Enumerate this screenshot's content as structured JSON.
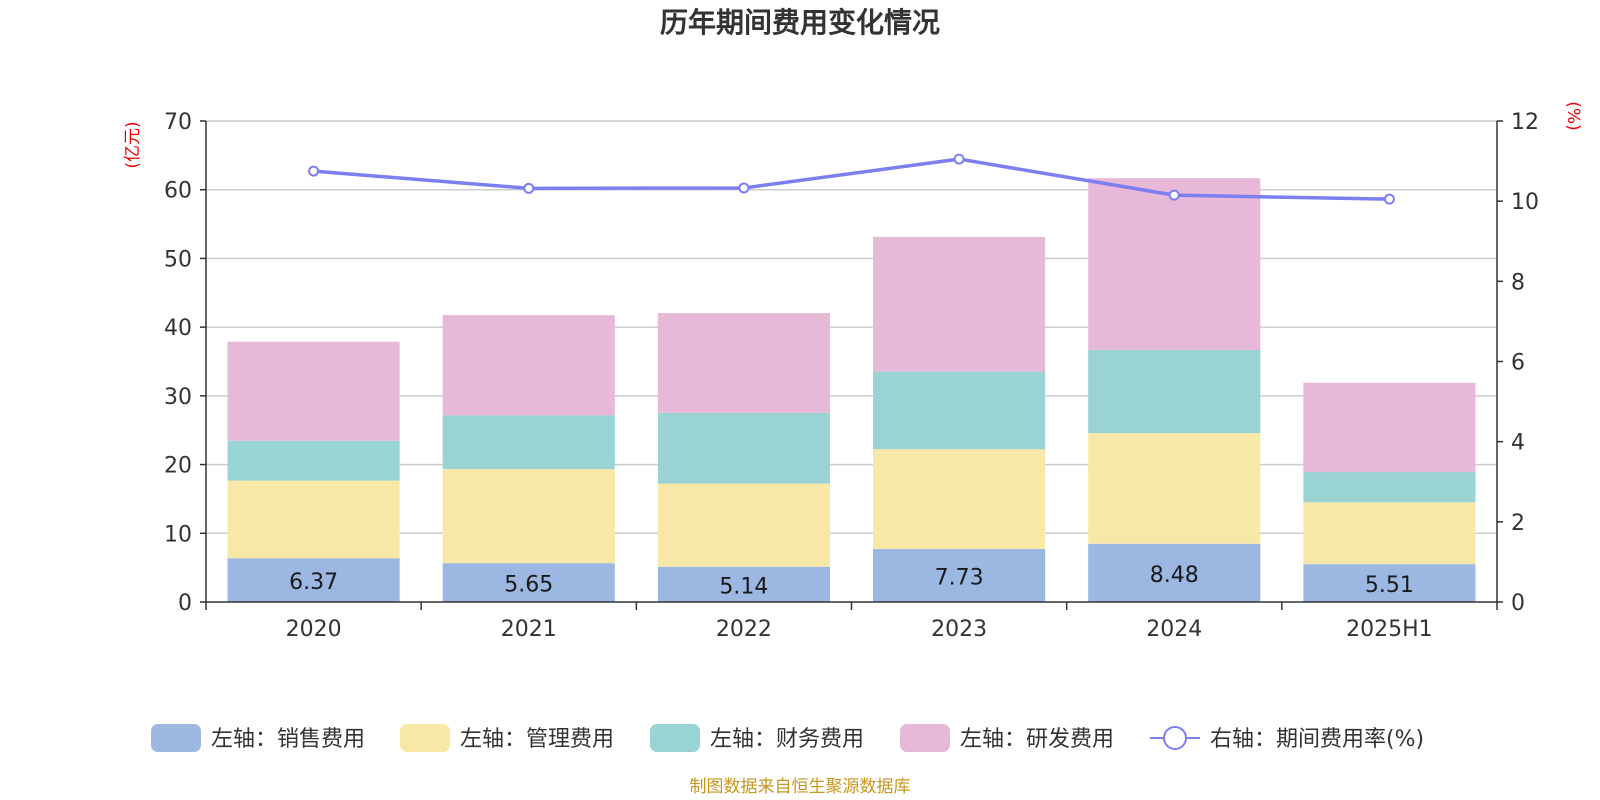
{
  "title": "历年期间费用变化情况",
  "source": "制图数据来自恒生聚源数据库",
  "colors": {
    "sales": "#9bb7e2",
    "admin": "#f8e8a8",
    "finance": "#99d3d4",
    "rnd": "#e8b8d9",
    "rate": "#7b7fef"
  },
  "chart_data": {
    "type": "bar",
    "stacked": true,
    "categories": [
      "2020",
      "2021",
      "2022",
      "2023",
      "2024",
      "2025H1"
    ],
    "left_axis": {
      "unit": "(亿元)",
      "ylim": [
        0,
        70
      ],
      "ticks": [
        0,
        10,
        20,
        30,
        40,
        50,
        60,
        70
      ]
    },
    "right_axis": {
      "unit": "(%)",
      "ylim": [
        0,
        12
      ],
      "ticks": [
        0,
        2,
        4,
        6,
        8,
        10,
        12
      ]
    },
    "grid": true,
    "legend_position": "bottom",
    "series": [
      {
        "name": "左轴：销售费用",
        "key": "sales",
        "axis": "left",
        "type": "bar",
        "values": [
          6.37,
          5.65,
          5.14,
          7.73,
          8.48,
          5.51
        ],
        "labels": [
          "6.37",
          "5.65",
          "5.14",
          "7.73",
          "8.48",
          "5.51"
        ]
      },
      {
        "name": "左轴：管理费用",
        "key": "admin",
        "axis": "left",
        "type": "bar",
        "values": [
          11.3,
          13.7,
          12.1,
          14.5,
          16.1,
          9.0
        ]
      },
      {
        "name": "左轴：财务费用",
        "key": "finance",
        "axis": "left",
        "type": "bar",
        "values": [
          5.8,
          7.8,
          10.3,
          11.3,
          12.1,
          4.4
        ]
      },
      {
        "name": "左轴：研发费用",
        "key": "rnd",
        "axis": "left",
        "type": "bar",
        "values": [
          14.4,
          14.6,
          14.5,
          19.6,
          25.0,
          13.0
        ]
      },
      {
        "name": "右轴：期间费用率(%)",
        "key": "rate",
        "axis": "right",
        "type": "line",
        "values": [
          10.75,
          10.32,
          10.33,
          11.05,
          10.15,
          10.05
        ]
      }
    ]
  }
}
